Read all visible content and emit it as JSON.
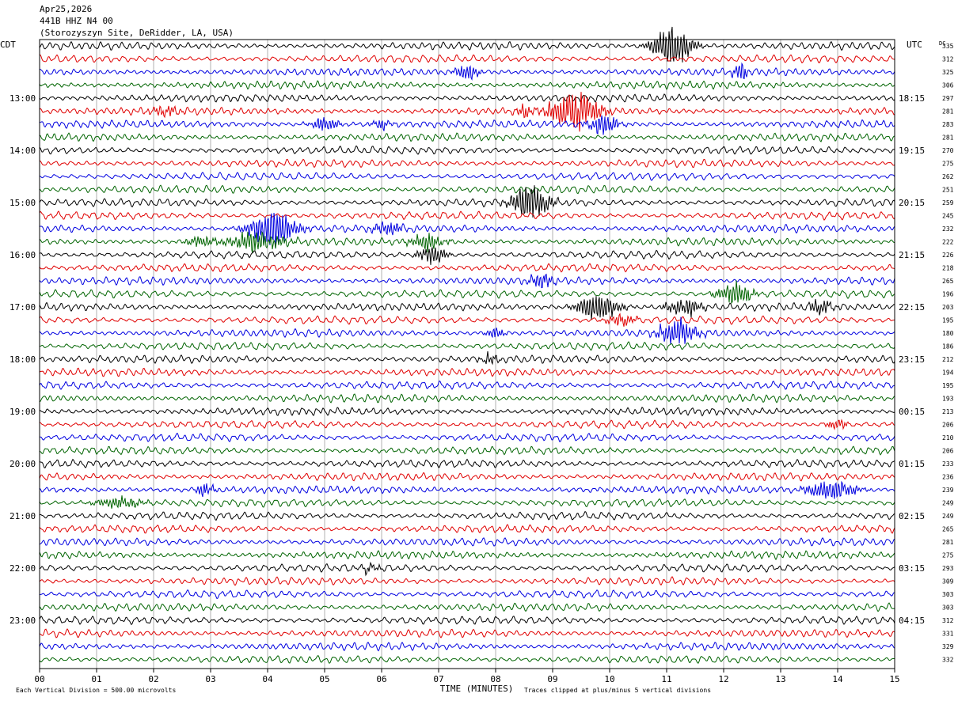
{
  "header": {
    "date": "Apr25,2026",
    "station": "441B HHZ N4 00",
    "site": "(Storozyszyn Site, DeRidder, LA, USA)"
  },
  "colors": {
    "trace": [
      "#000000",
      "#e00000",
      "#0000e0",
      "#006400"
    ],
    "grid": "#b0b0b0",
    "axis": "#000000"
  },
  "chart_data": {
    "type": "line",
    "title": "",
    "xlabel": "TIME (MINUTES)",
    "xlim": [
      0,
      15
    ],
    "x_ticks": [
      "00",
      "01",
      "02",
      "03",
      "04",
      "05",
      "06",
      "07",
      "08",
      "09",
      "10",
      "11",
      "12",
      "13",
      "14",
      "15"
    ],
    "left_axis_label": "CDT",
    "right_axis_label": "UTC",
    "dc_label": "DC",
    "left_times": [
      "13:00",
      "14:00",
      "15:00",
      "16:00",
      "17:00",
      "18:00",
      "19:00",
      "20:00",
      "21:00",
      "22:00",
      "23:00"
    ],
    "right_times": [
      "18:15",
      "19:15",
      "20:15",
      "21:15",
      "22:15",
      "23:15",
      "00:15",
      "01:15",
      "02:15",
      "03:15",
      "04:15"
    ],
    "hour_label_row_start": 4,
    "rows_per_hour": 4,
    "dc_offsets": [
      335,
      312,
      325,
      306,
      297,
      281,
      283,
      281,
      270,
      275,
      262,
      251,
      259,
      245,
      232,
      222,
      226,
      218,
      265,
      196,
      203,
      195,
      180,
      186,
      212,
      194,
      195,
      193,
      213,
      206,
      210,
      206,
      233,
      236,
      239,
      249,
      249,
      265,
      281,
      275,
      293,
      309,
      303,
      303,
      312,
      331,
      329,
      332
    ],
    "footnote_left": "Each Vertical Division =  500.00 microvolts",
    "footnote_right": "Traces clipped at plus/minus 5 vertical divisions",
    "events": [
      {
        "row": 0,
        "minute": 11.1,
        "amp": 3.2,
        "width": 0.4
      },
      {
        "row": 2,
        "minute": 7.5,
        "amp": 1.2,
        "width": 0.25
      },
      {
        "row": 2,
        "minute": 12.3,
        "amp": 1.4,
        "width": 0.15
      },
      {
        "row": 5,
        "minute": 9.4,
        "amp": 3.2,
        "width": 0.5
      },
      {
        "row": 5,
        "minute": 8.5,
        "amp": 1.0,
        "width": 0.15
      },
      {
        "row": 5,
        "minute": 2.2,
        "amp": 0.7,
        "width": 0.3
      },
      {
        "row": 6,
        "minute": 9.9,
        "amp": 1.5,
        "width": 0.3
      },
      {
        "row": 6,
        "minute": 5.0,
        "amp": 1.0,
        "width": 0.3
      },
      {
        "row": 6,
        "minute": 6.0,
        "amp": 0.8,
        "width": 0.2
      },
      {
        "row": 12,
        "minute": 8.6,
        "amp": 2.6,
        "width": 0.4
      },
      {
        "row": 14,
        "minute": 4.1,
        "amp": 2.8,
        "width": 0.5
      },
      {
        "row": 14,
        "minute": 6.1,
        "amp": 1.0,
        "width": 0.3
      },
      {
        "row": 15,
        "minute": 3.8,
        "amp": 1.5,
        "width": 0.6
      },
      {
        "row": 15,
        "minute": 6.8,
        "amp": 1.3,
        "width": 0.35
      },
      {
        "row": 15,
        "minute": 2.8,
        "amp": 0.8,
        "width": 0.3
      },
      {
        "row": 16,
        "minute": 6.9,
        "amp": 1.4,
        "width": 0.3
      },
      {
        "row": 18,
        "minute": 8.8,
        "amp": 1.1,
        "width": 0.25
      },
      {
        "row": 19,
        "minute": 12.2,
        "amp": 2.0,
        "width": 0.35
      },
      {
        "row": 20,
        "minute": 9.8,
        "amp": 2.0,
        "width": 0.45
      },
      {
        "row": 20,
        "minute": 11.3,
        "amp": 1.4,
        "width": 0.35
      },
      {
        "row": 20,
        "minute": 13.7,
        "amp": 1.1,
        "width": 0.25
      },
      {
        "row": 21,
        "minute": 10.2,
        "amp": 0.9,
        "width": 0.3
      },
      {
        "row": 22,
        "minute": 11.2,
        "amp": 2.0,
        "width": 0.4
      },
      {
        "row": 22,
        "minute": 8.0,
        "amp": 0.8,
        "width": 0.2
      },
      {
        "row": 24,
        "minute": 7.9,
        "amp": 0.8,
        "width": 0.2
      },
      {
        "row": 29,
        "minute": 14.0,
        "amp": 0.9,
        "width": 0.2
      },
      {
        "row": 34,
        "minute": 2.9,
        "amp": 0.9,
        "width": 0.2
      },
      {
        "row": 34,
        "minute": 13.9,
        "amp": 1.6,
        "width": 0.5
      },
      {
        "row": 35,
        "minute": 1.4,
        "amp": 0.9,
        "width": 0.5
      },
      {
        "row": 40,
        "minute": 5.8,
        "amp": 0.7,
        "width": 0.2
      }
    ]
  }
}
